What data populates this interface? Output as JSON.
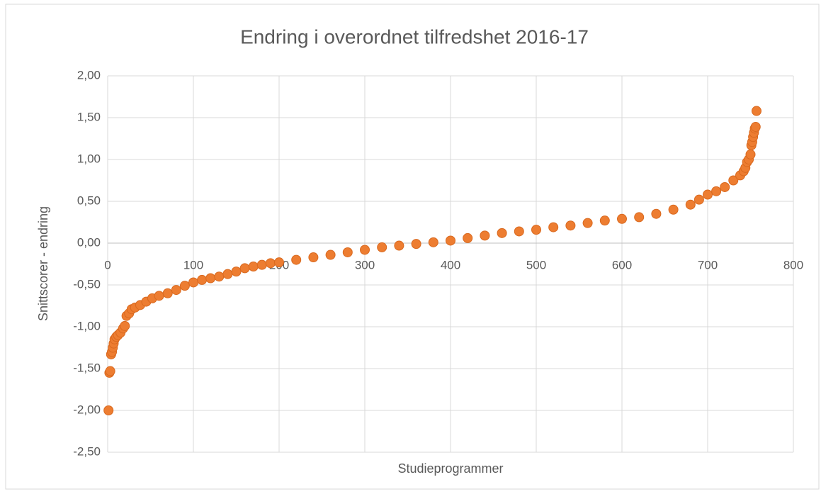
{
  "chart_data": {
    "type": "scatter",
    "title": "Endring i overordnet tilfredshet 2016-17",
    "x_label": "Studieprogrammer",
    "y_label": "Snittscorer - endring",
    "color": "#ed7d31",
    "grid": true,
    "xlim": [
      0,
      800
    ],
    "xticks": [
      0,
      100,
      200,
      300,
      400,
      500,
      600,
      700,
      800
    ],
    "ylim": [
      -2.5,
      2
    ],
    "yticks": [
      {
        "value": -2.5,
        "label": "-2,50"
      },
      {
        "value": -2,
        "label": "-2,00"
      },
      {
        "value": -1.5,
        "label": "-1,50"
      },
      {
        "value": -1,
        "label": "-1,00"
      },
      {
        "value": -0.5,
        "label": "-0,50"
      },
      {
        "value": 0,
        "label": "0,00"
      },
      {
        "value": 0.5,
        "label": "0,50"
      },
      {
        "value": 1,
        "label": "1,00"
      },
      {
        "value": 1.5,
        "label": "1,50"
      },
      {
        "value": 2,
        "label": "2,00"
      }
    ],
    "x": [
      1,
      2,
      3,
      4,
      5,
      6,
      7,
      8,
      10,
      12,
      15,
      18,
      20,
      22,
      25,
      28,
      32,
      38,
      45,
      52,
      60,
      70,
      80,
      90,
      100,
      110,
      120,
      130,
      140,
      150,
      160,
      170,
      180,
      190,
      200,
      220,
      240,
      260,
      280,
      300,
      320,
      340,
      360,
      380,
      400,
      420,
      440,
      460,
      480,
      500,
      520,
      540,
      560,
      580,
      600,
      620,
      640,
      660,
      680,
      690,
      700,
      710,
      720,
      730,
      738,
      742,
      744,
      746,
      748,
      750,
      751,
      752,
      753,
      754,
      755,
      756,
      757
    ],
    "values": [
      -2.0,
      -1.55,
      -1.53,
      -1.33,
      -1.3,
      -1.25,
      -1.2,
      -1.15,
      -1.12,
      -1.1,
      -1.07,
      -1.02,
      -0.99,
      -0.87,
      -0.84,
      -0.79,
      -0.77,
      -0.74,
      -0.7,
      -0.66,
      -0.63,
      -0.6,
      -0.56,
      -0.51,
      -0.47,
      -0.44,
      -0.42,
      -0.4,
      -0.37,
      -0.34,
      -0.3,
      -0.28,
      -0.26,
      -0.24,
      -0.23,
      -0.2,
      -0.17,
      -0.14,
      -0.11,
      -0.08,
      -0.05,
      -0.03,
      -0.01,
      0.01,
      0.03,
      0.06,
      0.09,
      0.12,
      0.14,
      0.16,
      0.19,
      0.21,
      0.24,
      0.27,
      0.29,
      0.31,
      0.35,
      0.4,
      0.46,
      0.52,
      0.58,
      0.62,
      0.67,
      0.75,
      0.81,
      0.86,
      0.9,
      0.97,
      1.0,
      1.06,
      1.17,
      1.21,
      1.27,
      1.32,
      1.37,
      1.39,
      1.58
    ]
  }
}
